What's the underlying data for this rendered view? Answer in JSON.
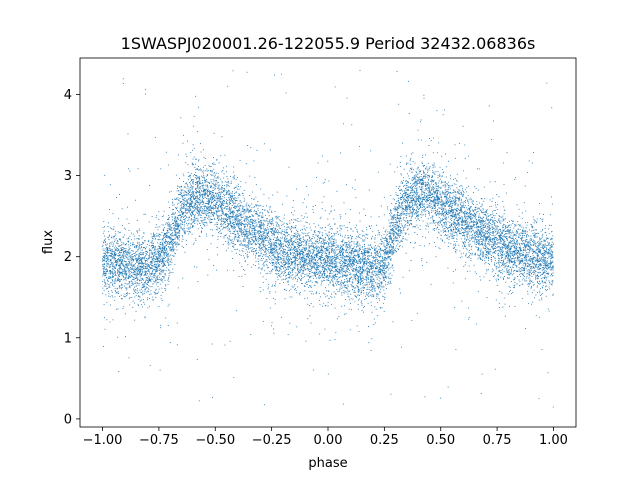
{
  "chart_data": {
    "type": "scatter",
    "title": "1SWASPJ020001.26-122055.9 Period 32432.06836s",
    "xlabel": "phase",
    "ylabel": "flux",
    "xlim": [
      -1.1,
      1.1
    ],
    "ylim": [
      -0.1,
      4.45
    ],
    "xticks": [
      -1.0,
      -0.75,
      -0.5,
      -0.25,
      0.0,
      0.25,
      0.5,
      0.75,
      1.0
    ],
    "xtick_labels": [
      "−1.00",
      "−0.75",
      "−0.50",
      "−0.25",
      "0.00",
      "0.25",
      "0.50",
      "0.75",
      "1.00"
    ],
    "yticks": [
      0,
      1,
      2,
      3,
      4
    ],
    "ytick_labels": [
      "0",
      "1",
      "2",
      "3",
      "4"
    ],
    "grid": false,
    "point_color": "#1f77b4",
    "light_curve": {
      "phase": [
        -1.0,
        -0.9,
        -0.8,
        -0.72,
        -0.65,
        -0.58,
        -0.5,
        -0.4,
        -0.3,
        -0.2,
        -0.1,
        0.0,
        0.1,
        0.2,
        0.25,
        0.3,
        0.35,
        0.42,
        0.5,
        0.6,
        0.7,
        0.8,
        0.9,
        1.0
      ],
      "flux": [
        1.95,
        1.9,
        1.85,
        2.05,
        2.55,
        2.75,
        2.7,
        2.45,
        2.25,
        2.05,
        2.0,
        1.95,
        1.9,
        1.85,
        1.9,
        2.4,
        2.7,
        2.8,
        2.65,
        2.45,
        2.25,
        2.1,
        2.0,
        1.95
      ],
      "scatter_sigma": 0.2,
      "outlier_range": [
        0.1,
        4.3
      ]
    }
  }
}
